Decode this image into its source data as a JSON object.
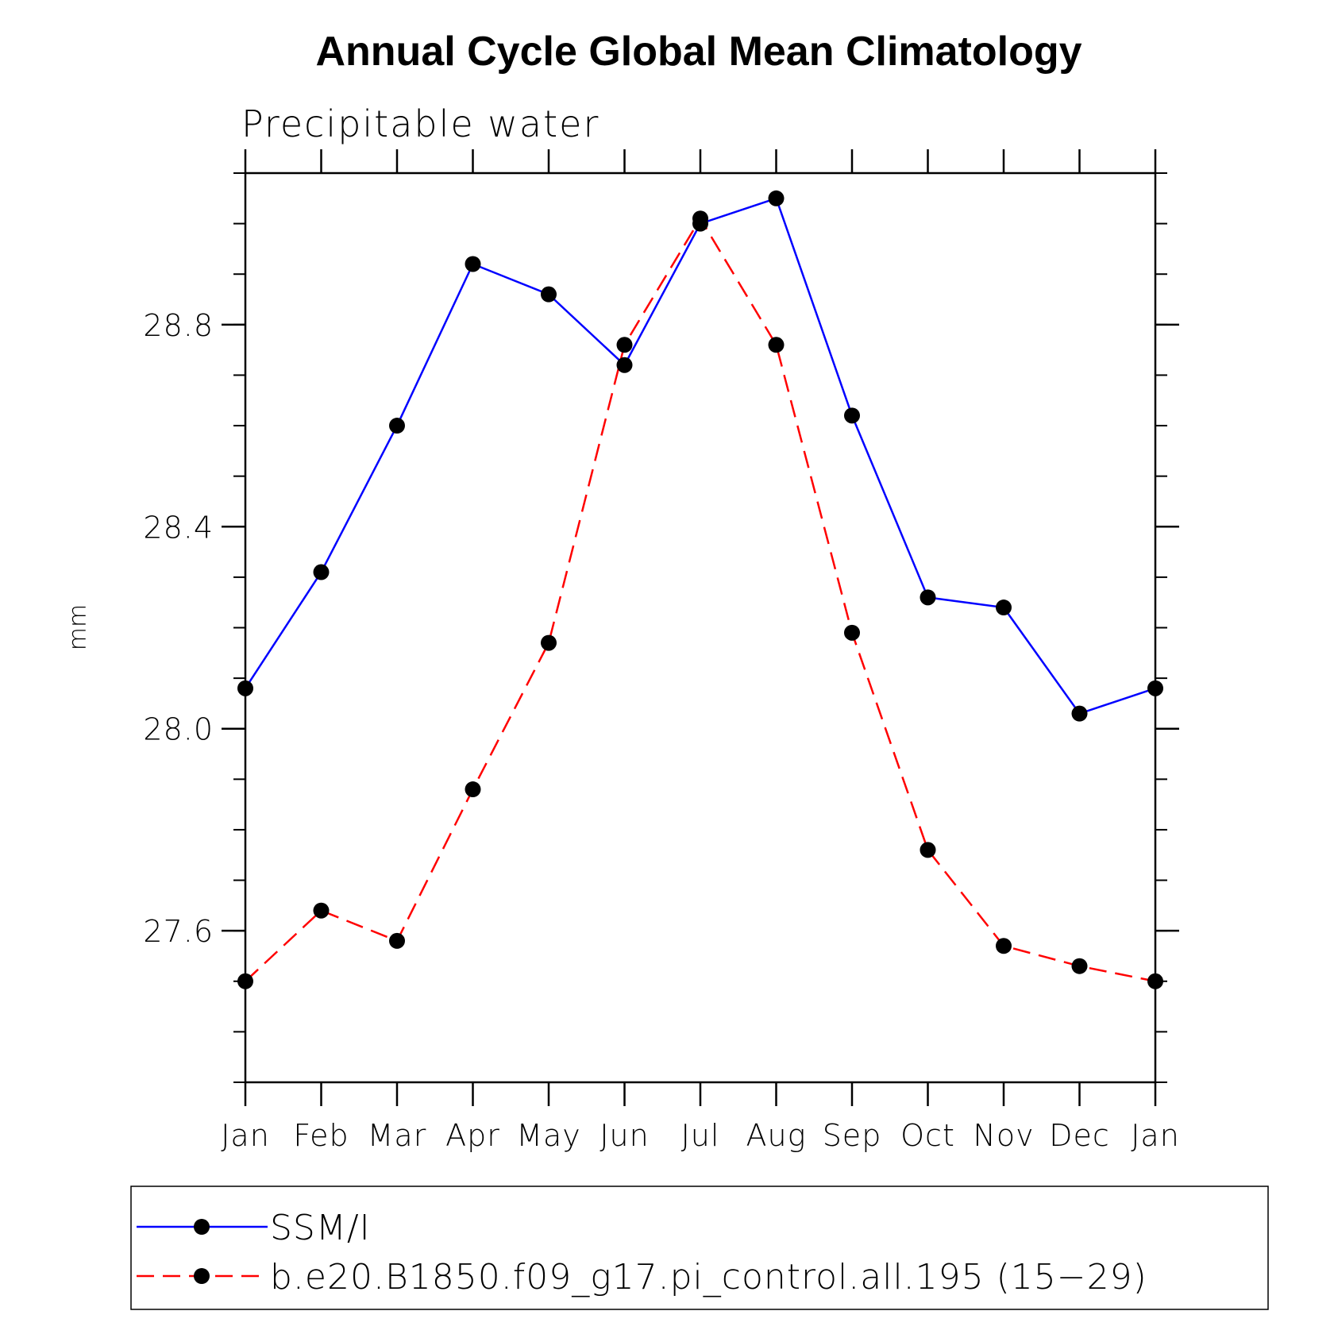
{
  "chart_data": {
    "type": "line",
    "title": "Annual Cycle Global Mean Climatology",
    "subtitle": "Precipitable water",
    "xlabel": "",
    "ylabel": "mm",
    "categories": [
      "Jan",
      "Feb",
      "Mar",
      "Apr",
      "May",
      "Jun",
      "Jul",
      "Aug",
      "Sep",
      "Oct",
      "Nov",
      "Dec",
      "Jan"
    ],
    "ylim": [
      27.3,
      29.1
    ],
    "yticks": [
      27.6,
      28.0,
      28.4,
      28.8
    ],
    "ytick_labels": [
      "27.6",
      "28.0",
      "28.4",
      "28.8"
    ],
    "yminor_step": 0.1,
    "grid": false,
    "legend_position": "bottom",
    "series": [
      {
        "name": "SSM/I",
        "color": "#0000ff",
        "dash": "solid",
        "marker": "filled-circle",
        "values": [
          28.08,
          28.31,
          28.6,
          28.92,
          28.86,
          28.72,
          29.0,
          29.05,
          28.62,
          28.26,
          28.24,
          28.03,
          28.08
        ]
      },
      {
        "name": "b.e20.B1850.f09_g17.pi_control.all.195 (15−29)",
        "color": "#ff0000",
        "dash": "dashed",
        "marker": "filled-circle",
        "values": [
          27.5,
          27.64,
          27.58,
          27.88,
          28.17,
          28.76,
          29.01,
          28.76,
          28.19,
          27.76,
          27.57,
          27.53,
          27.5
        ]
      }
    ]
  }
}
